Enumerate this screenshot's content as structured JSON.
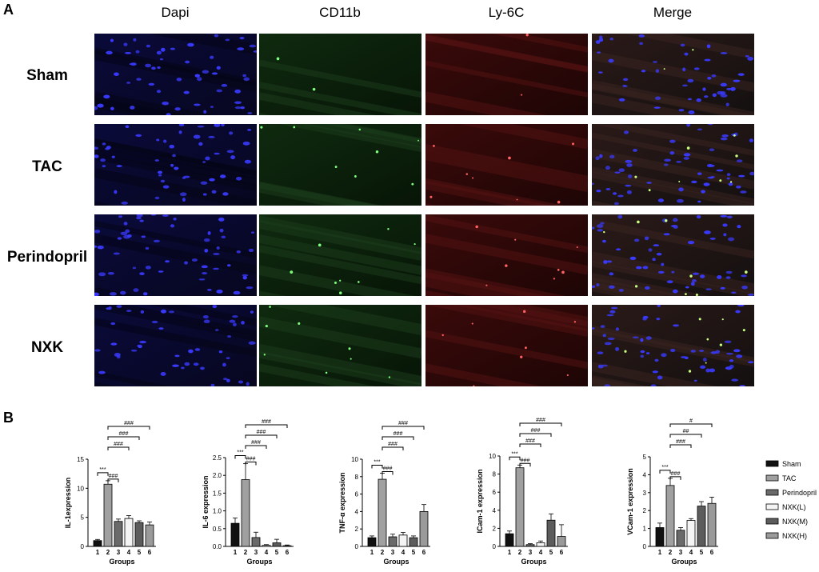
{
  "panel_a": {
    "letter": "A",
    "columns": [
      "Dapi",
      "CD11b",
      "Ly-6C",
      "Merge"
    ],
    "rows": [
      "Sham",
      "TAC",
      "Perindopril",
      "NXK"
    ]
  },
  "panel_b": {
    "letter": "B"
  },
  "legend": {
    "items": [
      {
        "label": "Sham",
        "color": "#111111"
      },
      {
        "label": "TAC",
        "color": "#a0a0a0"
      },
      {
        "label": "Perindopril",
        "color": "#6a6a6a"
      },
      {
        "label": "NXK(L)",
        "color": "#f4f4f4"
      },
      {
        "label": "NXK(M)",
        "color": "#5c5c5c"
      },
      {
        "label": "NXK(H)",
        "color": "#9a9a9a"
      }
    ]
  },
  "chart_data": [
    {
      "type": "bar",
      "categories": [
        "1",
        "2",
        "3",
        "4",
        "5",
        "6"
      ],
      "values": [
        1.0,
        10.7,
        4.3,
        4.8,
        4.1,
        3.7
      ],
      "errors": [
        0.2,
        0.6,
        0.4,
        0.5,
        0.3,
        0.5
      ],
      "xlabel": "Groups",
      "ylabel": "IL-1expression",
      "ylim": [
        0,
        15
      ],
      "yticks": [
        0,
        5,
        10,
        15
      ],
      "significance": [
        {
          "from": 1,
          "to": 2,
          "label": "***"
        },
        {
          "from": 2,
          "to": 3,
          "label": "###"
        },
        {
          "from": 2,
          "to": 4,
          "label": "###"
        },
        {
          "from": 2,
          "to": 5,
          "label": "###"
        },
        {
          "from": 2,
          "to": 6,
          "label": "###"
        }
      ]
    },
    {
      "type": "bar",
      "categories": [
        "1",
        "2",
        "3",
        "4",
        "5",
        "6"
      ],
      "values": [
        0.65,
        1.88,
        0.25,
        0.03,
        0.1,
        0.02
      ],
      "errors": [
        0.15,
        0.45,
        0.15,
        0.02,
        0.1,
        0.02
      ],
      "xlabel": "Groups",
      "ylabel": "IL-6 expression",
      "ylim": [
        0,
        2.5
      ],
      "yticks": [
        0.0,
        0.5,
        1.0,
        1.5,
        2.0,
        2.5
      ],
      "significance": [
        {
          "from": 1,
          "to": 2,
          "label": "***"
        },
        {
          "from": 2,
          "to": 3,
          "label": "###"
        },
        {
          "from": 2,
          "to": 4,
          "label": "###"
        },
        {
          "from": 2,
          "to": 5,
          "label": "###"
        },
        {
          "from": 2,
          "to": 6,
          "label": "###"
        }
      ]
    },
    {
      "type": "bar",
      "categories": [
        "1",
        "2",
        "3",
        "4",
        "5",
        "6"
      ],
      "values": [
        1.0,
        7.7,
        1.1,
        1.3,
        1.0,
        4.0
      ],
      "errors": [
        0.2,
        0.7,
        0.3,
        0.3,
        0.2,
        0.8
      ],
      "xlabel": "Groups",
      "ylabel": "TNF-α expression",
      "ylim": [
        0,
        10
      ],
      "yticks": [
        0,
        2,
        4,
        6,
        8,
        10
      ],
      "significance": [
        {
          "from": 1,
          "to": 2,
          "label": "***"
        },
        {
          "from": 2,
          "to": 3,
          "label": "###"
        },
        {
          "from": 2,
          "to": 4,
          "label": "###"
        },
        {
          "from": 2,
          "to": 5,
          "label": "###"
        },
        {
          "from": 2,
          "to": 6,
          "label": "###"
        }
      ]
    },
    {
      "type": "bar",
      "categories": [
        "1",
        "2",
        "3",
        "4",
        "5",
        "6"
      ],
      "values": [
        1.4,
        8.7,
        0.2,
        0.4,
        2.9,
        1.1
      ],
      "errors": [
        0.3,
        0.3,
        0.1,
        0.2,
        0.7,
        1.3
      ],
      "xlabel": "Groups",
      "ylabel": "ICam-1 expression",
      "ylim": [
        0,
        10
      ],
      "yticks": [
        0,
        2,
        4,
        6,
        8,
        10
      ],
      "significance": [
        {
          "from": 1,
          "to": 2,
          "label": "***"
        },
        {
          "from": 2,
          "to": 3,
          "label": "###"
        },
        {
          "from": 2,
          "to": 4,
          "label": "###"
        },
        {
          "from": 2,
          "to": 5,
          "label": "###"
        },
        {
          "from": 2,
          "to": 6,
          "label": "###"
        }
      ]
    },
    {
      "type": "bar",
      "categories": [
        "1",
        "2",
        "3",
        "4",
        "5",
        "6"
      ],
      "values": [
        1.05,
        3.4,
        0.9,
        1.45,
        2.25,
        2.4
      ],
      "errors": [
        0.25,
        0.4,
        0.15,
        0.1,
        0.25,
        0.35
      ],
      "xlabel": "Groups",
      "ylabel": "VCam-1 expression",
      "ylim": [
        0,
        5
      ],
      "yticks": [
        0,
        1,
        2,
        3,
        4,
        5
      ],
      "significance": [
        {
          "from": 1,
          "to": 2,
          "label": "***"
        },
        {
          "from": 2,
          "to": 3,
          "label": "###"
        },
        {
          "from": 2,
          "to": 4,
          "label": "###"
        },
        {
          "from": 2,
          "to": 5,
          "label": "##"
        },
        {
          "from": 2,
          "to": 6,
          "label": "#"
        }
      ]
    }
  ]
}
